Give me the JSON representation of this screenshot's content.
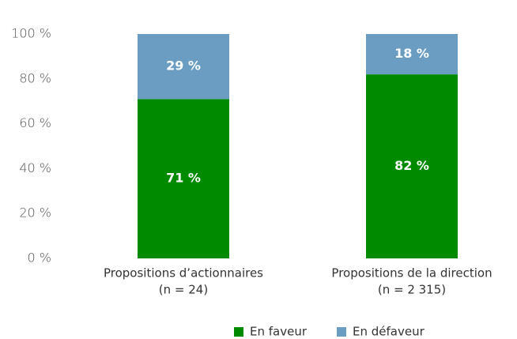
{
  "chart_data": {
    "type": "stacked_bar",
    "categories": [
      [
        "Propositions d’actionnaires",
        "(n = 24)"
      ],
      [
        "Propositions de la direction",
        "(n = 2 315)"
      ]
    ],
    "series": [
      {
        "name": "En faveur",
        "color": "#008a00",
        "values": [
          71,
          82
        ],
        "value_labels": [
          "71 %",
          "82 %"
        ]
      },
      {
        "name": "En défaveur",
        "color": "#6b9dc2",
        "values": [
          29,
          18
        ],
        "value_labels": [
          "29 %",
          "18 %"
        ]
      }
    ],
    "ylim": [
      0,
      100
    ],
    "yticks": [
      {
        "value": 0,
        "label": "0 %"
      },
      {
        "value": 20,
        "label": "20 %"
      },
      {
        "value": 40,
        "label": "40 %"
      },
      {
        "value": 60,
        "label": "60 %"
      },
      {
        "value": 80,
        "label": "80 %"
      },
      {
        "value": 100,
        "label": "100 %"
      }
    ],
    "grid": false,
    "legend": "bottom"
  }
}
